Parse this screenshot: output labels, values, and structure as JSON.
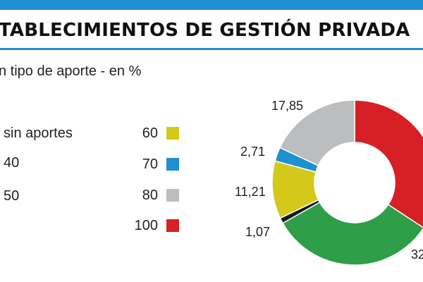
{
  "header": {
    "title": "TABLECIMIENTOS DE GESTIÓN PRIVADA",
    "subtitle": "n tipo de aporte - en %"
  },
  "legend": [
    {
      "label": "sin aportes",
      "color": null
    },
    {
      "label": "40",
      "color": null
    },
    {
      "label": "50",
      "color": null
    },
    {
      "label": "60",
      "color": "#d4c81a"
    },
    {
      "label": "70",
      "color": "#1f8fd0"
    },
    {
      "label": "80",
      "color": "#bcbdbf"
    },
    {
      "label": "100",
      "color": "#d71f26"
    }
  ],
  "chart_data": {
    "type": "pie",
    "donut": true,
    "title": "TABLECIMIENTOS DE GESTIÓN PRIVADA",
    "subtitle": "n tipo de aporte - en %",
    "slices": [
      {
        "category": "100",
        "value": 33.9,
        "label": "",
        "color": "#d71f26"
      },
      {
        "category": "",
        "value": 32.26,
        "label": "32",
        "color": "#2e9e48"
      },
      {
        "category": "",
        "value": 1.07,
        "label": "1,07",
        "color": "#1a1a1a"
      },
      {
        "category": "60",
        "value": 11.21,
        "label": "11,21",
        "color": "#d4c81a"
      },
      {
        "category": "70",
        "value": 2.71,
        "label": "2,71",
        "color": "#1f8fd0"
      },
      {
        "category": "80",
        "value": 17.85,
        "label": "17,85",
        "color": "#bcbdbf"
      }
    ]
  }
}
